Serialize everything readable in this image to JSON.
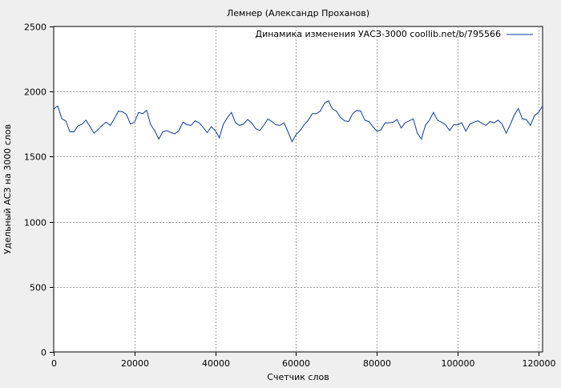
{
  "chart_data": {
    "type": "line",
    "title": "Лемнер (Александр Проханов)",
    "xlabel": "Счетчик слов",
    "ylabel": "Удельный АСЗ на 3000 слов",
    "xlim": [
      0,
      121000
    ],
    "ylim": [
      0,
      2500
    ],
    "xticks": [
      0,
      20000,
      40000,
      60000,
      80000,
      100000,
      120000
    ],
    "yticks": [
      0,
      500,
      1000,
      1500,
      2000,
      2500
    ],
    "grid": true,
    "legend_position": "top-right",
    "series": [
      {
        "name": "Динамика изменения УАСЗ-3000 coollib.net/b/795566",
        "color": "#0a3a9a",
        "x": [
          0,
          1000,
          2000,
          3000,
          4000,
          5000,
          6000,
          7000,
          8000,
          9000,
          10000,
          11000,
          12000,
          13000,
          14000,
          15000,
          16000,
          17000,
          18000,
          19000,
          20000,
          21000,
          22000,
          23000,
          24000,
          25000,
          26000,
          27000,
          28000,
          29000,
          30000,
          31000,
          32000,
          33000,
          34000,
          35000,
          36000,
          37000,
          38000,
          39000,
          40000,
          41000,
          42000,
          43000,
          44000,
          45000,
          46000,
          47000,
          48000,
          49000,
          50000,
          51000,
          52000,
          53000,
          54000,
          55000,
          56000,
          57000,
          58000,
          59000,
          60000,
          61000,
          62000,
          63000,
          64000,
          65000,
          66000,
          67000,
          68000,
          69000,
          70000,
          71000,
          72000,
          73000,
          74000,
          75000,
          76000,
          77000,
          78000,
          79000,
          80000,
          81000,
          82000,
          83000,
          84000,
          85000,
          86000,
          87000,
          88000,
          89000,
          90000,
          91000,
          92000,
          93000,
          94000,
          95000,
          96000,
          97000,
          98000,
          99000,
          100000,
          101000,
          102000,
          103000,
          104000,
          105000,
          106000,
          107000,
          108000,
          109000,
          110000,
          111000,
          112000,
          113000,
          114000,
          115000,
          116000,
          117000,
          118000,
          119000,
          120000,
          121000
        ],
        "values": [
          1865,
          1890,
          1790,
          1775,
          1690,
          1690,
          1735,
          1750,
          1780,
          1730,
          1680,
          1710,
          1740,
          1765,
          1740,
          1790,
          1850,
          1845,
          1825,
          1750,
          1765,
          1840,
          1830,
          1855,
          1745,
          1700,
          1635,
          1690,
          1700,
          1685,
          1675,
          1700,
          1765,
          1745,
          1740,
          1775,
          1760,
          1725,
          1685,
          1730,
          1700,
          1645,
          1750,
          1800,
          1840,
          1760,
          1740,
          1750,
          1785,
          1760,
          1715,
          1700,
          1740,
          1790,
          1770,
          1745,
          1740,
          1760,
          1690,
          1615,
          1670,
          1700,
          1745,
          1780,
          1830,
          1830,
          1850,
          1910,
          1930,
          1865,
          1850,
          1800,
          1775,
          1770,
          1830,
          1855,
          1850,
          1780,
          1770,
          1730,
          1695,
          1705,
          1760,
          1760,
          1765,
          1785,
          1720,
          1760,
          1775,
          1790,
          1680,
          1635,
          1740,
          1780,
          1840,
          1780,
          1765,
          1745,
          1700,
          1745,
          1745,
          1760,
          1695,
          1750,
          1765,
          1775,
          1755,
          1740,
          1770,
          1760,
          1780,
          1750,
          1680,
          1745,
          1820,
          1870,
          1790,
          1785,
          1740,
          1815,
          1840,
          1890
        ]
      }
    ]
  }
}
